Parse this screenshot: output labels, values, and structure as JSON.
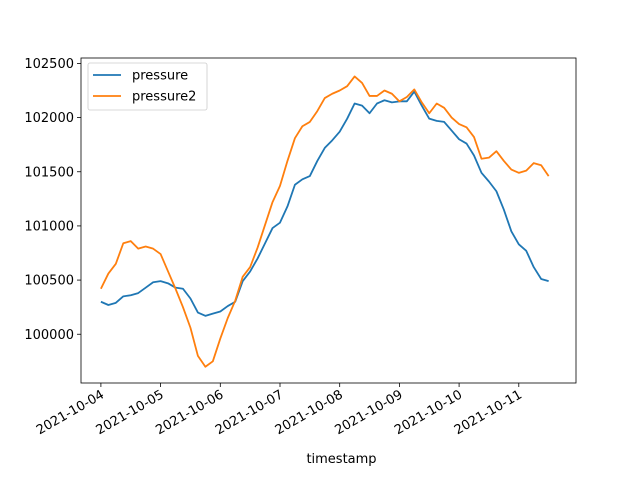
{
  "chart_data": {
    "type": "line",
    "title": "",
    "xlabel": "timestamp",
    "ylabel": "",
    "x_ticks": [
      "2021-10-04",
      "2021-10-05",
      "2021-10-06",
      "2021-10-07",
      "2021-10-08",
      "2021-10-09",
      "2021-10-10",
      "2021-10-11"
    ],
    "y_ticks": [
      100000,
      100500,
      101000,
      101500,
      102000,
      102500
    ],
    "xlim": [
      "2021-10-03 16:00",
      "2021-10-11 23:00"
    ],
    "ylim": [
      99550,
      102550
    ],
    "grid": false,
    "legend_position": "top-left",
    "series": [
      {
        "name": "pressure",
        "color": "#1f77b4",
        "x": [
          "2021-10-04 00:00",
          "2021-10-04 03:00",
          "2021-10-04 06:00",
          "2021-10-04 09:00",
          "2021-10-04 12:00",
          "2021-10-04 15:00",
          "2021-10-04 18:00",
          "2021-10-04 21:00",
          "2021-10-05 00:00",
          "2021-10-05 03:00",
          "2021-10-05 06:00",
          "2021-10-05 09:00",
          "2021-10-05 12:00",
          "2021-10-05 15:00",
          "2021-10-05 18:00",
          "2021-10-05 21:00",
          "2021-10-06 00:00",
          "2021-10-06 03:00",
          "2021-10-06 06:00",
          "2021-10-06 09:00",
          "2021-10-06 12:00",
          "2021-10-06 15:00",
          "2021-10-06 18:00",
          "2021-10-06 21:00",
          "2021-10-07 00:00",
          "2021-10-07 03:00",
          "2021-10-07 06:00",
          "2021-10-07 09:00",
          "2021-10-07 12:00",
          "2021-10-07 15:00",
          "2021-10-07 18:00",
          "2021-10-07 21:00",
          "2021-10-08 00:00",
          "2021-10-08 03:00",
          "2021-10-08 06:00",
          "2021-10-08 09:00",
          "2021-10-08 12:00",
          "2021-10-08 15:00",
          "2021-10-08 18:00",
          "2021-10-08 21:00",
          "2021-10-09 00:00",
          "2021-10-09 03:00",
          "2021-10-09 06:00",
          "2021-10-09 09:00",
          "2021-10-09 12:00",
          "2021-10-09 15:00",
          "2021-10-09 18:00",
          "2021-10-09 21:00",
          "2021-10-10 00:00",
          "2021-10-10 03:00",
          "2021-10-10 06:00",
          "2021-10-10 09:00",
          "2021-10-10 12:00",
          "2021-10-10 15:00",
          "2021-10-10 18:00",
          "2021-10-10 21:00",
          "2021-10-11 00:00",
          "2021-10-11 03:00",
          "2021-10-11 06:00",
          "2021-10-11 09:00",
          "2021-10-11 12:00"
        ],
        "values": [
          100300,
          100270,
          100290,
          100350,
          100360,
          100380,
          100430,
          100480,
          100490,
          100470,
          100430,
          100420,
          100330,
          100200,
          100170,
          100190,
          100210,
          100260,
          100300,
          100490,
          100580,
          100700,
          100840,
          100980,
          101030,
          101180,
          101380,
          101430,
          101460,
          101600,
          101720,
          101790,
          101870,
          101990,
          102130,
          102110,
          102040,
          102130,
          102160,
          102140,
          102150,
          102150,
          102240,
          102110,
          101990,
          101970,
          101960,
          101880,
          101800,
          101760,
          101650,
          101490,
          101410,
          101320,
          101150,
          100950,
          100830,
          100770,
          100620,
          100510,
          100490
        ]
      },
      {
        "name": "pressure2",
        "color": "#ff7f0e",
        "x": [
          "2021-10-04 00:00",
          "2021-10-04 03:00",
          "2021-10-04 06:00",
          "2021-10-04 09:00",
          "2021-10-04 12:00",
          "2021-10-04 15:00",
          "2021-10-04 18:00",
          "2021-10-04 21:00",
          "2021-10-05 00:00",
          "2021-10-05 03:00",
          "2021-10-05 06:00",
          "2021-10-05 09:00",
          "2021-10-05 12:00",
          "2021-10-05 15:00",
          "2021-10-05 18:00",
          "2021-10-05 21:00",
          "2021-10-06 00:00",
          "2021-10-06 03:00",
          "2021-10-06 06:00",
          "2021-10-06 09:00",
          "2021-10-06 12:00",
          "2021-10-06 15:00",
          "2021-10-06 18:00",
          "2021-10-06 21:00",
          "2021-10-07 00:00",
          "2021-10-07 03:00",
          "2021-10-07 06:00",
          "2021-10-07 09:00",
          "2021-10-07 12:00",
          "2021-10-07 15:00",
          "2021-10-07 18:00",
          "2021-10-07 21:00",
          "2021-10-08 00:00",
          "2021-10-08 03:00",
          "2021-10-08 06:00",
          "2021-10-08 09:00",
          "2021-10-08 12:00",
          "2021-10-08 15:00",
          "2021-10-08 18:00",
          "2021-10-08 21:00",
          "2021-10-09 00:00",
          "2021-10-09 03:00",
          "2021-10-09 06:00",
          "2021-10-09 09:00",
          "2021-10-09 12:00",
          "2021-10-09 15:00",
          "2021-10-09 18:00",
          "2021-10-09 21:00",
          "2021-10-10 00:00",
          "2021-10-10 03:00",
          "2021-10-10 06:00",
          "2021-10-10 09:00",
          "2021-10-10 12:00",
          "2021-10-10 15:00",
          "2021-10-10 18:00",
          "2021-10-10 21:00",
          "2021-10-11 00:00",
          "2021-10-11 03:00",
          "2021-10-11 06:00",
          "2021-10-11 09:00",
          "2021-10-11 12:00"
        ],
        "values": [
          100420,
          100560,
          100650,
          100840,
          100860,
          100790,
          100810,
          100790,
          100740,
          100580,
          100420,
          100250,
          100060,
          99800,
          99700,
          99750,
          99960,
          100150,
          100310,
          100530,
          100620,
          100800,
          101010,
          101220,
          101370,
          101600,
          101810,
          101920,
          101960,
          102060,
          102180,
          102220,
          102250,
          102290,
          102380,
          102320,
          102200,
          102200,
          102250,
          102220,
          102150,
          102190,
          102260,
          102140,
          102040,
          102130,
          102090,
          102000,
          101940,
          101910,
          101820,
          101620,
          101630,
          101690,
          101600,
          101520,
          101490,
          101510,
          101580,
          101560,
          101460
        ]
      }
    ]
  }
}
